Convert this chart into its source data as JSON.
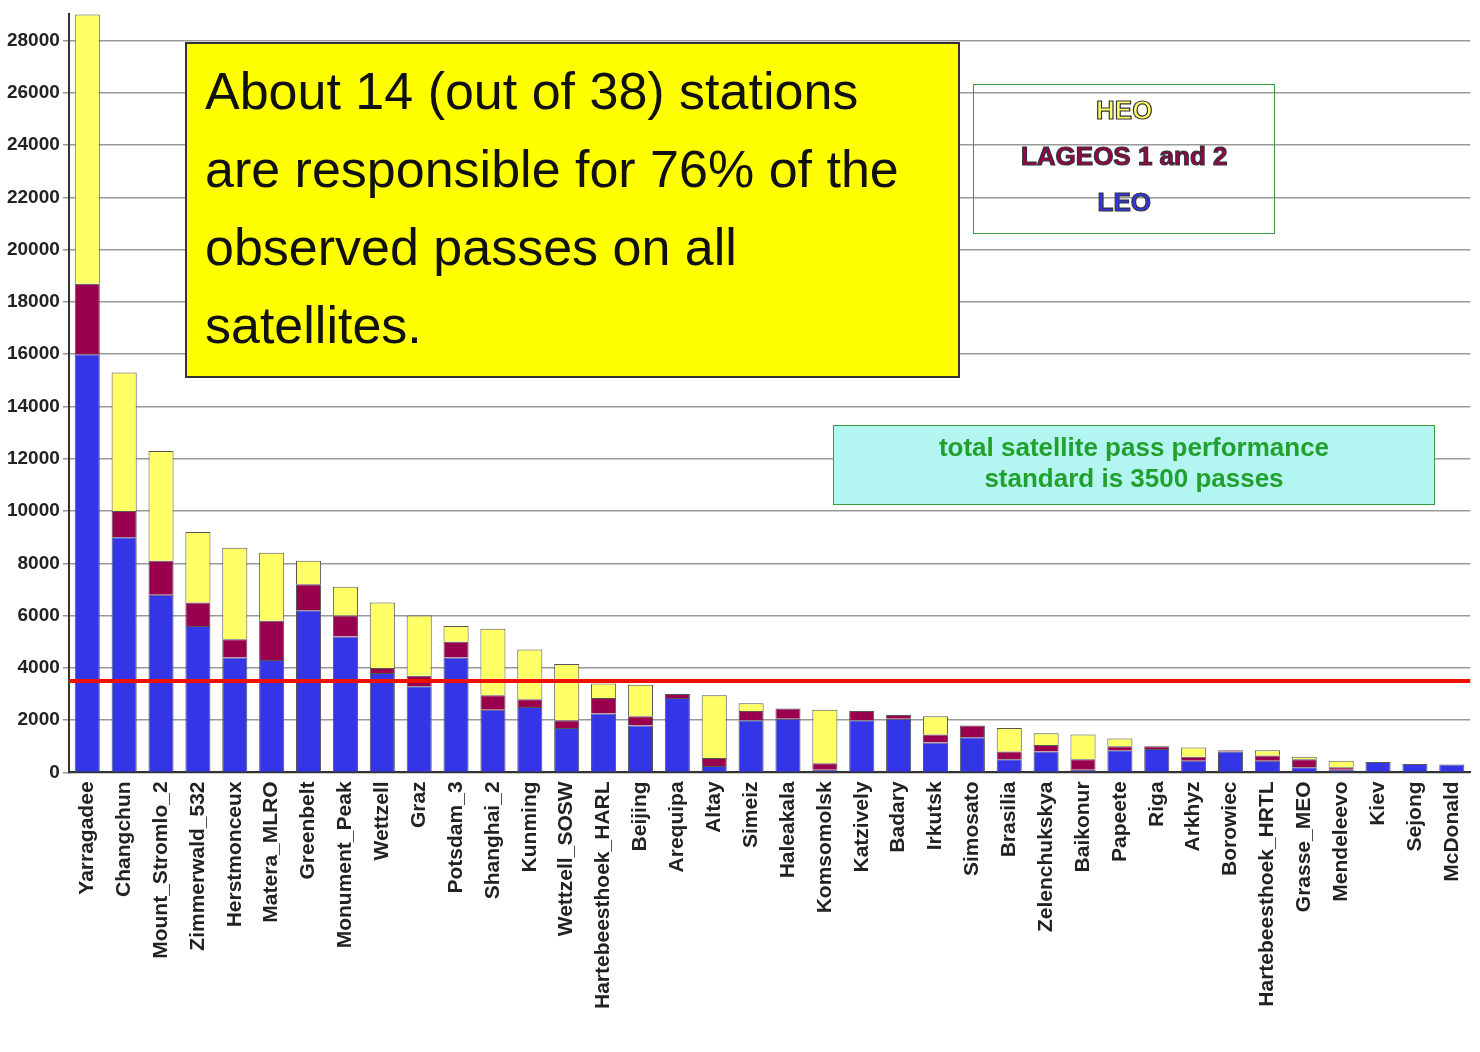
{
  "chart_data": {
    "type": "bar",
    "stacked": true,
    "categories": [
      "Yarragadee",
      "Changchun",
      "Mount_Stromlo_2",
      "Zimmerwald_532",
      "Herstmonceux",
      "Matera_MLRO",
      "Greenbelt",
      "Monument_Peak",
      "Wettzell",
      "Graz",
      "Potsdam_3",
      "Shanghai_2",
      "Kunming",
      "Wettzell_SOSW",
      "Hartebeesthoek_HARL",
      "Beijing",
      "Arequipa",
      "Altay",
      "Simeiz",
      "Haleakala",
      "Komsomolsk",
      "Katzively",
      "Badary",
      "Irkutsk",
      "Simosato",
      "Brasilia",
      "Zelenchukskya",
      "Baikonur",
      "Papeete",
      "Riga",
      "Arkhyz",
      "Borowiec",
      "Hartebeesthoek_HRTL",
      "Grasse_MEO",
      "Mendeleevo",
      "Kiev",
      "Sejong",
      "McDonald"
    ],
    "series": [
      {
        "name": "LEO",
        "color": "#3535e8",
        "values": [
          16000,
          9000,
          6800,
          5600,
          4400,
          4300,
          6200,
          5200,
          3800,
          3300,
          4400,
          2400,
          2500,
          1700,
          2250,
          1800,
          2850,
          250,
          2000,
          2050,
          100,
          2000,
          2050,
          1150,
          1350,
          500,
          800,
          100,
          850,
          900,
          450,
          800,
          450,
          200,
          100,
          400,
          320,
          300
        ]
      },
      {
        "name": "LAGEOS 1 and 2",
        "color": "#99004d",
        "values": [
          2700,
          1000,
          1300,
          900,
          700,
          1500,
          1000,
          800,
          200,
          400,
          600,
          550,
          300,
          300,
          600,
          350,
          150,
          300,
          350,
          400,
          250,
          350,
          150,
          300,
          450,
          300,
          250,
          400,
          150,
          100,
          150,
          50,
          200,
          300,
          100,
          0,
          0,
          0
        ]
      },
      {
        "name": "HEO",
        "color": "#ffff66",
        "values": [
          10300,
          5300,
          4200,
          2700,
          3500,
          2600,
          900,
          1100,
          2500,
          2300,
          600,
          2550,
          1900,
          2150,
          550,
          1200,
          0,
          2400,
          300,
          0,
          2050,
          0,
          0,
          700,
          0,
          900,
          450,
          950,
          300,
          0,
          350,
          0,
          200,
          100,
          250,
          0,
          0,
          0
        ]
      }
    ],
    "ylim": [
      0,
      29000
    ],
    "yticks": [
      0,
      2000,
      4000,
      6000,
      8000,
      10000,
      12000,
      14000,
      16000,
      18000,
      20000,
      22000,
      24000,
      26000,
      28000
    ],
    "grid": "y",
    "legend": "top right",
    "ref_lines": [
      {
        "axis": "y",
        "value": 3500,
        "color": "#ee1100"
      }
    ],
    "annotations": [
      "About 14 (out of 38) stations are responsible for 76% of the observed passes on all satellites.",
      "total satellite pass performance standard is 3500 passes"
    ]
  }
}
